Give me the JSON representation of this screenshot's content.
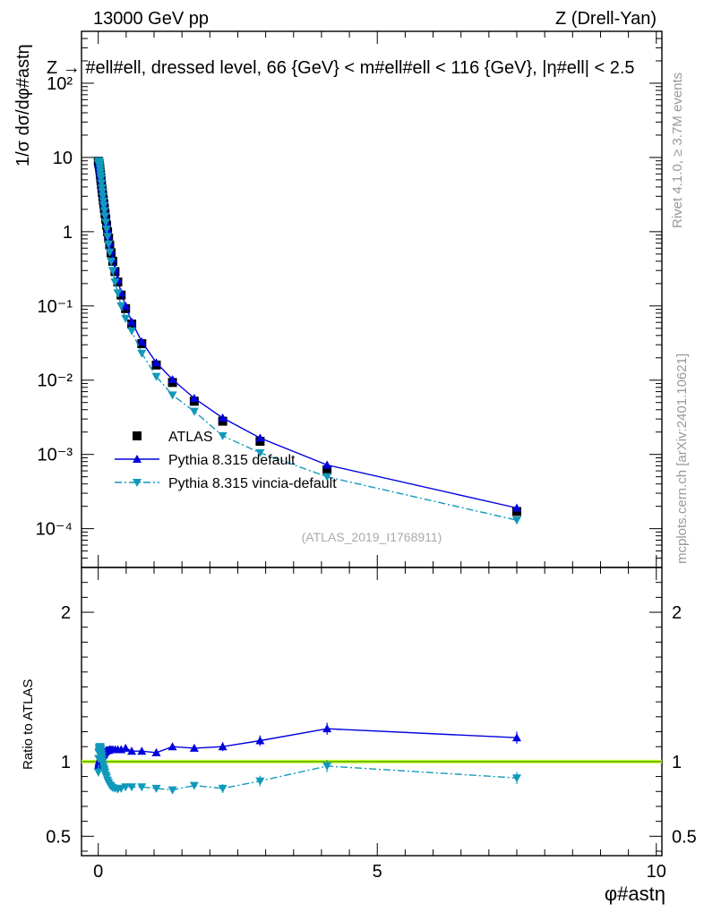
{
  "header": {
    "energy": "13000 GeV pp",
    "process": "Z (Drell-Yan)",
    "selection": "Z → #ell#ell, dressed level, 66 {GeV} < m#ell#ell < 116 {GeV}, |η#ell| < 2.5"
  },
  "side": {
    "rivet": "Rivet 4.1.0, ≥ 3.7M events",
    "mcplots": "mcplots.cern.ch [arXiv:2401.10621]"
  },
  "analysis_id": "(ATLAS_2019_I1768911)",
  "colors": {
    "atlas": "#000000",
    "default": "#0000dd",
    "vincia": "#1199bb",
    "band": "#ccff33",
    "band_line": "#55aa00"
  },
  "chart_data": [
    {
      "type": "scatter",
      "panel": "main",
      "ylabel": "1/σ dσ/dφ#astη",
      "yscale": "log",
      "xlim": [
        -0.3,
        10.1
      ],
      "ylim": [
        3e-05,
        500
      ],
      "y_tick_labels": [
        "10⁻⁴",
        "10⁻³",
        "10⁻²",
        "10⁻¹",
        "1",
        "10",
        "10²"
      ],
      "x": [
        0.002,
        0.006,
        0.01,
        0.014,
        0.018,
        0.022,
        0.026,
        0.03,
        0.035,
        0.04,
        0.045,
        0.05,
        0.058,
        0.066,
        0.074,
        0.082,
        0.091,
        0.1,
        0.11,
        0.122,
        0.135,
        0.15,
        0.167,
        0.185,
        0.205,
        0.23,
        0.26,
        0.3,
        0.35,
        0.41,
        0.49,
        0.6,
        0.78,
        1.04,
        1.33,
        1.72,
        2.23,
        2.9,
        4.1,
        7.5
      ],
      "legend": [
        "ATLAS",
        "Pythia 8.315 default",
        "Pythia 8.315 vincia-default"
      ],
      "legend_position": "bottom-left",
      "series": [
        {
          "name": "ATLAS",
          "marker": "square",
          "values": [
            8.9,
            8.7,
            8.5,
            8.2,
            7.9,
            7.6,
            7.2,
            6.8,
            6.3,
            5.8,
            5.3,
            4.9,
            4.3,
            3.8,
            3.4,
            3.0,
            2.65,
            2.35,
            2.05,
            1.75,
            1.48,
            1.22,
            1.0,
            0.82,
            0.66,
            0.52,
            0.4,
            0.29,
            0.21,
            0.14,
            0.092,
            0.057,
            0.031,
            0.016,
            0.0093,
            0.0052,
            0.0028,
            0.0015,
            0.00062,
            0.00017
          ]
        },
        {
          "name": "Pythia 8.315 default",
          "marker": "triangle-up",
          "values": [
            8.6,
            8.4,
            8.3,
            8.1,
            7.9,
            7.6,
            7.3,
            6.9,
            6.4,
            5.9,
            5.45,
            5.05,
            4.45,
            3.9,
            3.55,
            3.13,
            2.77,
            2.47,
            2.17,
            1.86,
            1.58,
            1.31,
            1.075,
            0.88,
            0.71,
            0.56,
            0.432,
            0.313,
            0.227,
            0.151,
            0.1,
            0.061,
            0.033,
            0.0172,
            0.0102,
            0.0057,
            0.0031,
            0.00166,
            0.00072,
            0.00019
          ]
        },
        {
          "name": "Pythia 8.315 vincia-default",
          "marker": "triangle-down",
          "values": [
            8.3,
            8.9,
            9.0,
            8.8,
            8.6,
            8.3,
            7.9,
            7.5,
            6.9,
            6.3,
            5.7,
            5.2,
            4.5,
            3.9,
            3.45,
            3.0,
            2.58,
            2.25,
            1.92,
            1.62,
            1.34,
            1.08,
            0.86,
            0.68,
            0.53,
            0.4,
            0.3,
            0.21,
            0.15,
            0.1,
            0.068,
            0.046,
            0.023,
            0.0112,
            0.0063,
            0.0038,
            0.00178,
            0.00105,
            0.0005,
            0.00013
          ]
        }
      ]
    },
    {
      "type": "line",
      "panel": "ratio",
      "xlabel": "φ#astη",
      "ylabel": "Ratio to ATLAS",
      "xlim": [
        -0.3,
        10.1
      ],
      "ylim": [
        0.37,
        2.3
      ],
      "x_ticks": [
        0,
        5,
        10
      ],
      "y_ticks": [
        0.5,
        1,
        2
      ],
      "x": [
        0.002,
        0.006,
        0.01,
        0.014,
        0.018,
        0.022,
        0.026,
        0.03,
        0.035,
        0.04,
        0.045,
        0.05,
        0.058,
        0.066,
        0.074,
        0.082,
        0.091,
        0.1,
        0.11,
        0.122,
        0.135,
        0.15,
        0.167,
        0.185,
        0.205,
        0.23,
        0.26,
        0.3,
        0.35,
        0.41,
        0.49,
        0.6,
        0.78,
        1.04,
        1.33,
        1.72,
        2.23,
        2.9,
        4.1,
        7.5
      ],
      "series": [
        {
          "name": "Pythia 8.315 default",
          "values": [
            0.97,
            0.97,
            0.98,
            0.99,
            1.0,
            1.0,
            1.01,
            1.01,
            1.02,
            1.02,
            1.03,
            1.03,
            1.035,
            1.035,
            1.04,
            1.045,
            1.045,
            1.05,
            1.06,
            1.065,
            1.07,
            1.075,
            1.075,
            1.075,
            1.08,
            1.08,
            1.08,
            1.08,
            1.08,
            1.08,
            1.09,
            1.07,
            1.07,
            1.06,
            1.1,
            1.09,
            1.1,
            1.14,
            1.22,
            1.16
          ],
          "errors": [
            0.03,
            0.02,
            0.02,
            0.02,
            0.015,
            0.015,
            0.015,
            0.015,
            0.015,
            0.015,
            0.015,
            0.015,
            0.015,
            0.015,
            0.015,
            0.015,
            0.015,
            0.015,
            0.015,
            0.015,
            0.015,
            0.015,
            0.015,
            0.015,
            0.015,
            0.015,
            0.015,
            0.015,
            0.015,
            0.015,
            0.015,
            0.015,
            0.015,
            0.02,
            0.02,
            0.02,
            0.03,
            0.035,
            0.04,
            0.04
          ]
        },
        {
          "name": "Pythia 8.315 vincia-default",
          "values": [
            0.93,
            1.02,
            1.06,
            1.07,
            1.085,
            1.09,
            1.095,
            1.1,
            1.1,
            1.09,
            1.08,
            1.07,
            1.055,
            1.04,
            1.02,
            1.0,
            0.98,
            0.96,
            0.945,
            0.93,
            0.91,
            0.895,
            0.875,
            0.86,
            0.845,
            0.835,
            0.825,
            0.82,
            0.815,
            0.82,
            0.83,
            0.83,
            0.83,
            0.82,
            0.81,
            0.84,
            0.82,
            0.87,
            0.97,
            0.89
          ],
          "errors": [
            0.03,
            0.02,
            0.02,
            0.02,
            0.015,
            0.015,
            0.015,
            0.015,
            0.015,
            0.015,
            0.015,
            0.015,
            0.015,
            0.015,
            0.015,
            0.015,
            0.015,
            0.015,
            0.015,
            0.015,
            0.015,
            0.015,
            0.015,
            0.015,
            0.015,
            0.015,
            0.015,
            0.015,
            0.015,
            0.015,
            0.015,
            0.015,
            0.015,
            0.02,
            0.02,
            0.02,
            0.03,
            0.035,
            0.04,
            0.04
          ]
        }
      ]
    }
  ]
}
